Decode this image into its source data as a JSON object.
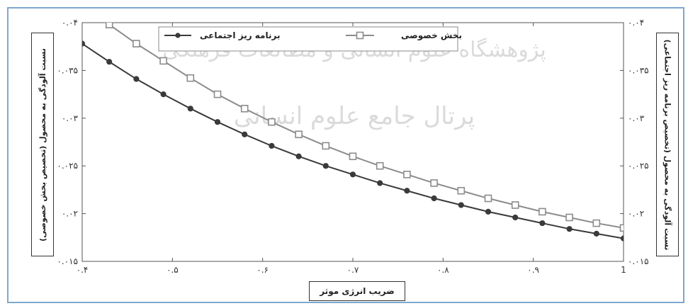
{
  "chart_data": {
    "type": "line",
    "xlabel": "ضریب انرژی موثر",
    "ylabel_left": "نسبت آلودگی به محصول (تخصیص بخش خصوصی)",
    "ylabel_right": "نسبت آلودگی به محصول (تخصیص برنامه ریز اجتماعی)",
    "xlim": [
      0.4,
      1.0
    ],
    "ylim": [
      0.015,
      0.04
    ],
    "x_ticks": [
      0.4,
      0.5,
      0.6,
      0.7,
      0.8,
      0.9,
      1.0
    ],
    "x_tick_labels": [
      "۰.۴",
      "۰.۵",
      "۰.۶",
      "۰.۷",
      "۰.۸",
      "۰.۹",
      "1"
    ],
    "y_ticks": [
      0.015,
      0.02,
      0.025,
      0.03,
      0.035,
      0.04
    ],
    "y_tick_labels": [
      "۰.۰۱۵",
      "۰.۰۲",
      "۰.۰۲۵",
      "۰.۰۳",
      "۰.۰۳۵",
      "۰.۰۴"
    ],
    "legend_position": "top",
    "series": [
      {
        "name": "بخش خصوصی",
        "marker": "square",
        "color": "#8c8c8c",
        "x": [
          0.4,
          0.43,
          0.46,
          0.49,
          0.52,
          0.55,
          0.58,
          0.61,
          0.64,
          0.67,
          0.7,
          0.73,
          0.76,
          0.79,
          0.82,
          0.85,
          0.88,
          0.91,
          0.94,
          0.97,
          1.0
        ],
        "y": [
          0.042,
          0.0398,
          0.0378,
          0.036,
          0.0342,
          0.0325,
          0.031,
          0.0296,
          0.0283,
          0.0271,
          0.026,
          0.025,
          0.0241,
          0.0232,
          0.0224,
          0.0216,
          0.0209,
          0.0202,
          0.0196,
          0.019,
          0.0185
        ]
      },
      {
        "name": "برنامه ریز اجتماعی",
        "marker": "circle",
        "color": "#3a3a3a",
        "x": [
          0.4,
          0.43,
          0.46,
          0.49,
          0.52,
          0.55,
          0.58,
          0.61,
          0.64,
          0.67,
          0.7,
          0.73,
          0.76,
          0.79,
          0.82,
          0.85,
          0.88,
          0.91,
          0.94,
          0.97,
          1.0
        ],
        "y": [
          0.0378,
          0.0359,
          0.0341,
          0.0325,
          0.031,
          0.0296,
          0.0283,
          0.0271,
          0.026,
          0.025,
          0.0241,
          0.0232,
          0.0224,
          0.0216,
          0.0209,
          0.0202,
          0.0196,
          0.019,
          0.0184,
          0.0179,
          0.0174
        ]
      }
    ]
  },
  "watermark": {
    "line1": "پژوهشگاه علوم انسانی و مطالعات فرهنگی",
    "line2": "پرتال جامع علوم انسانی"
  }
}
